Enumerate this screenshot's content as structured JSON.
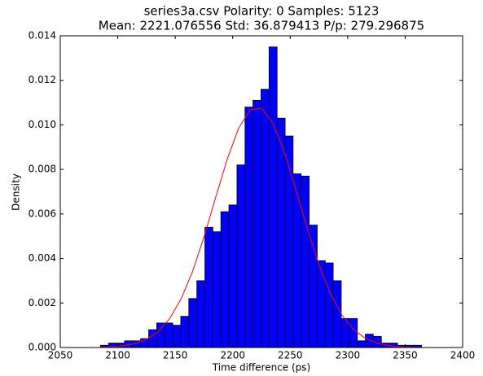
{
  "chart_data": {
    "type": "histogram",
    "title": "series3a.csv Polarity: 0 Samples: 5123",
    "subtitle": "Mean: 2221.076556 Std: 36.879413 P/p: 279.296875",
    "xlabel": "Time difference (ps)",
    "ylabel": "Density",
    "color": "#0000ff",
    "bins": [
      2085.0,
      2092.0,
      2099.0,
      2105.9,
      2112.9,
      2119.9,
      2126.9,
      2133.9,
      2140.8,
      2147.8,
      2154.8,
      2161.8,
      2168.8,
      2175.8,
      2182.7,
      2189.7,
      2196.7,
      2203.7,
      2210.7,
      2217.6,
      2224.6,
      2231.6,
      2238.6,
      2245.6,
      2252.5,
      2259.5,
      2266.5,
      2273.5,
      2280.5,
      2287.4,
      2294.4,
      2301.4,
      2308.4,
      2315.4,
      2322.3,
      2329.3,
      2336.3,
      2343.3,
      2350.3,
      2357.2,
      2364.2
    ],
    "values": [
      0.0001,
      0.0002,
      0.0002,
      0.0003,
      0.0003,
      0.0004,
      0.0008,
      0.0011,
      0.0011,
      0.001,
      0.0014,
      0.0022,
      0.003,
      0.0054,
      0.0052,
      0.0061,
      0.0064,
      0.0082,
      0.0108,
      0.0111,
      0.0116,
      0.0135,
      0.0103,
      0.0095,
      0.0078,
      0.0077,
      0.0055,
      0.0039,
      0.0038,
      0.003,
      0.0013,
      0.0013,
      0.0003,
      0.0006,
      0.0005,
      0.0002,
      0.0002,
      0.0001,
      0.0001,
      0.0001
    ],
    "curve": {
      "type": "line",
      "color": "#ff0000",
      "x": [
        2085,
        2095,
        2105,
        2115,
        2125,
        2135,
        2145,
        2155,
        2165,
        2175,
        2185,
        2195,
        2205,
        2215,
        2225,
        2235,
        2245,
        2255,
        2265,
        2275,
        2285,
        2295,
        2305,
        2315,
        2325,
        2335,
        2345,
        2355,
        2365
      ],
      "y": [
        1.2e-05,
        3.13e-05,
        7.63e-05,
        0.000172,
        0.000363,
        0.00071,
        0.001288,
        0.002173,
        0.003405,
        0.004959,
        0.006707,
        0.008424,
        0.009836,
        0.010671,
        0.010757,
        0.010075,
        0.008768,
        0.007086,
        0.005323,
        0.003715,
        0.002409,
        0.001452,
        0.000812,
        0.000422,
        0.000204,
        9.17e-05,
        3.83e-05,
        1.48e-05,
        5.3e-06
      ]
    },
    "xlim": [
      2050,
      2400
    ],
    "xticks": [
      2050,
      2100,
      2150,
      2200,
      2250,
      2300,
      2350,
      2400
    ],
    "ylim": [
      0,
      0.014
    ],
    "yticks": [
      {
        "value": 0,
        "label": "0.000"
      },
      {
        "value": 0.002,
        "label": "0.002"
      },
      {
        "value": 0.004,
        "label": "0.004"
      },
      {
        "value": 0.006,
        "label": "0.006"
      },
      {
        "value": 0.008,
        "label": "0.008"
      },
      {
        "value": 0.01,
        "label": "0.010"
      },
      {
        "value": 0.012,
        "label": "0.012"
      },
      {
        "value": 0.014,
        "label": "0.014"
      }
    ]
  }
}
